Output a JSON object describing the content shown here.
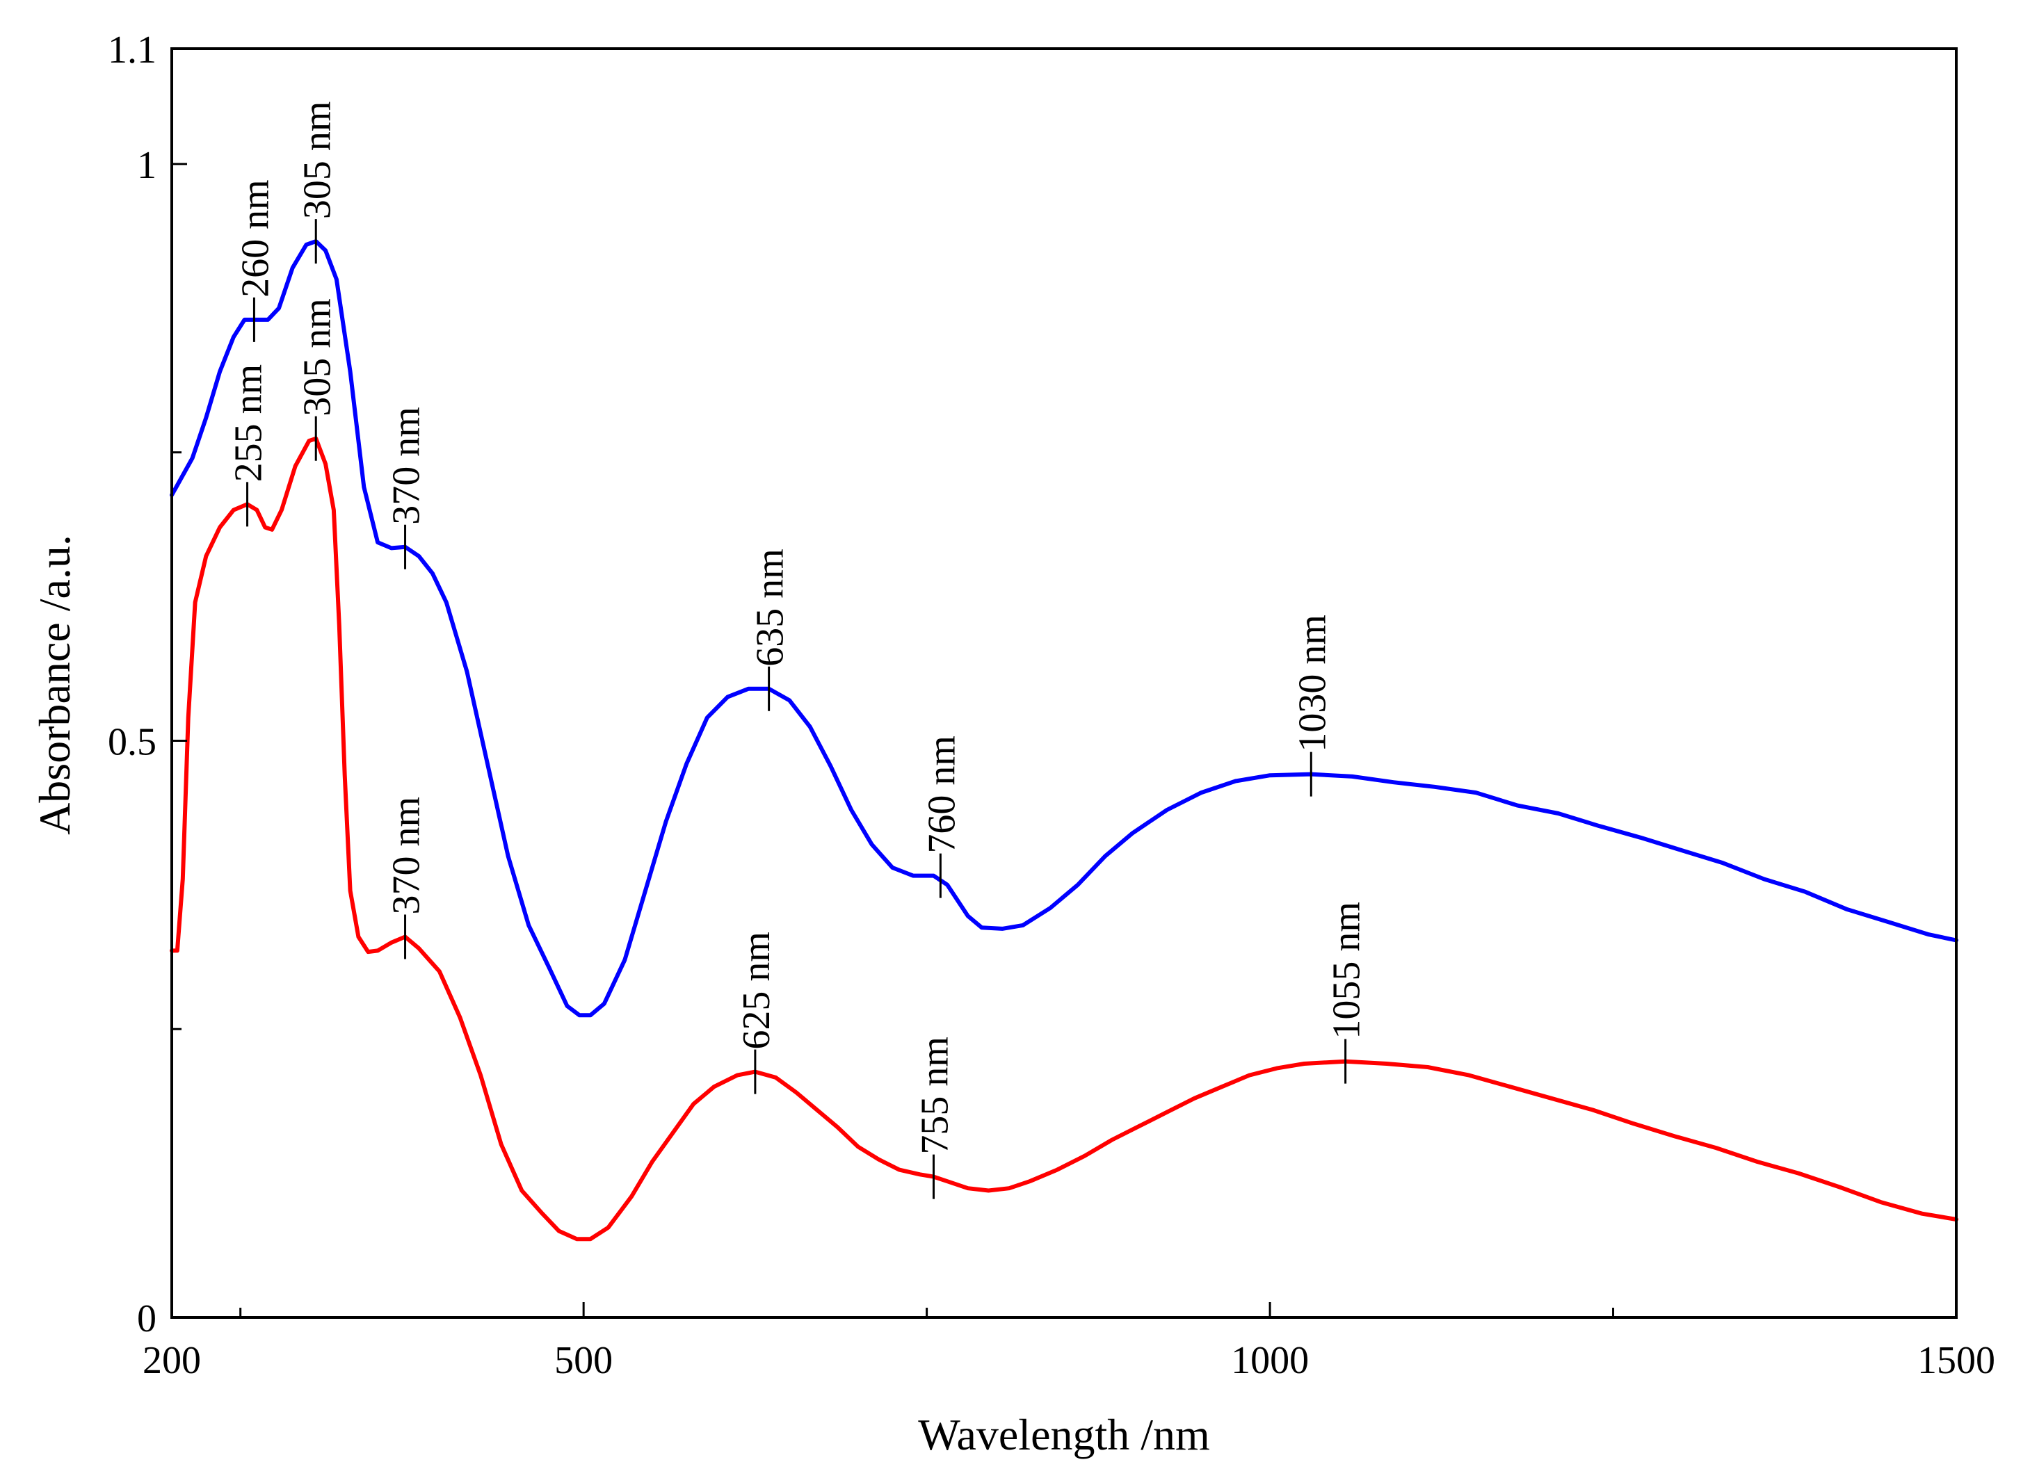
{
  "chart_data": {
    "type": "line",
    "title": "",
    "xlabel": "Wavelength /nm",
    "ylabel": "Absorbance /a.u.",
    "xlim": [
      200,
      1500
    ],
    "ylim": [
      0,
      1.1
    ],
    "x_ticks": [
      {
        "value": 200,
        "label": "200"
      },
      {
        "value": 500,
        "label": "500"
      },
      {
        "value": 1000,
        "label": "1000"
      },
      {
        "value": 1500,
        "label": "1500"
      }
    ],
    "x_minor_ticks": [
      250,
      750,
      1250
    ],
    "y_ticks": [
      {
        "value": 0,
        "label": "0"
      },
      {
        "value": 0.5,
        "label": "0.5"
      },
      {
        "value": 1,
        "label": "1"
      },
      {
        "value": 1.1,
        "label": "1.1"
      }
    ],
    "y_minor_ticks": [
      0.25,
      0.75
    ],
    "grid": false,
    "series": [
      {
        "name": "blue",
        "color": "#0000ff",
        "points": [
          [
            200,
            0.713
          ],
          [
            215,
            0.745
          ],
          [
            225,
            0.78
          ],
          [
            235,
            0.82
          ],
          [
            245,
            0.85
          ],
          [
            253,
            0.865
          ],
          [
            260,
            0.865
          ],
          [
            270,
            0.865
          ],
          [
            278,
            0.875
          ],
          [
            288,
            0.91
          ],
          [
            298,
            0.93
          ],
          [
            305,
            0.933
          ],
          [
            312,
            0.925
          ],
          [
            320,
            0.9
          ],
          [
            330,
            0.82
          ],
          [
            340,
            0.72
          ],
          [
            350,
            0.672
          ],
          [
            360,
            0.667
          ],
          [
            370,
            0.668
          ],
          [
            380,
            0.66
          ],
          [
            390,
            0.645
          ],
          [
            400,
            0.62
          ],
          [
            415,
            0.56
          ],
          [
            430,
            0.48
          ],
          [
            445,
            0.4
          ],
          [
            460,
            0.34
          ],
          [
            475,
            0.303
          ],
          [
            488,
            0.27
          ],
          [
            497,
            0.262
          ],
          [
            505,
            0.262
          ],
          [
            515,
            0.272
          ],
          [
            530,
            0.31
          ],
          [
            545,
            0.37
          ],
          [
            560,
            0.43
          ],
          [
            575,
            0.48
          ],
          [
            590,
            0.52
          ],
          [
            605,
            0.538
          ],
          [
            620,
            0.545
          ],
          [
            635,
            0.545
          ],
          [
            650,
            0.535
          ],
          [
            665,
            0.512
          ],
          [
            680,
            0.478
          ],
          [
            695,
            0.44
          ],
          [
            710,
            0.41
          ],
          [
            725,
            0.39
          ],
          [
            740,
            0.383
          ],
          [
            755,
            0.383
          ],
          [
            765,
            0.375
          ],
          [
            780,
            0.348
          ],
          [
            790,
            0.338
          ],
          [
            805,
            0.337
          ],
          [
            820,
            0.34
          ],
          [
            840,
            0.355
          ],
          [
            860,
            0.375
          ],
          [
            880,
            0.4
          ],
          [
            900,
            0.42
          ],
          [
            925,
            0.44
          ],
          [
            950,
            0.455
          ],
          [
            975,
            0.465
          ],
          [
            1000,
            0.47
          ],
          [
            1030,
            0.471
          ],
          [
            1060,
            0.469
          ],
          [
            1090,
            0.464
          ],
          [
            1120,
            0.46
          ],
          [
            1150,
            0.455
          ],
          [
            1180,
            0.444
          ],
          [
            1210,
            0.437
          ],
          [
            1240,
            0.426
          ],
          [
            1270,
            0.416
          ],
          [
            1300,
            0.405
          ],
          [
            1330,
            0.394
          ],
          [
            1360,
            0.38
          ],
          [
            1390,
            0.369
          ],
          [
            1420,
            0.354
          ],
          [
            1450,
            0.343
          ],
          [
            1480,
            0.332
          ],
          [
            1500,
            0.327
          ]
        ]
      },
      {
        "name": "red",
        "color": "#ff0000",
        "points": [
          [
            200,
            0.318
          ],
          [
            204,
            0.318
          ],
          [
            208,
            0.38
          ],
          [
            212,
            0.52
          ],
          [
            217,
            0.62
          ],
          [
            225,
            0.66
          ],
          [
            235,
            0.685
          ],
          [
            245,
            0.7
          ],
          [
            255,
            0.705
          ],
          [
            262,
            0.7
          ],
          [
            268,
            0.685
          ],
          [
            273,
            0.683
          ],
          [
            280,
            0.7
          ],
          [
            290,
            0.738
          ],
          [
            300,
            0.76
          ],
          [
            305,
            0.762
          ],
          [
            312,
            0.74
          ],
          [
            318,
            0.7
          ],
          [
            322,
            0.6
          ],
          [
            326,
            0.47
          ],
          [
            330,
            0.37
          ],
          [
            336,
            0.33
          ],
          [
            343,
            0.317
          ],
          [
            350,
            0.318
          ],
          [
            360,
            0.325
          ],
          [
            370,
            0.33
          ],
          [
            380,
            0.32
          ],
          [
            395,
            0.3
          ],
          [
            410,
            0.26
          ],
          [
            425,
            0.21
          ],
          [
            440,
            0.15
          ],
          [
            455,
            0.11
          ],
          [
            470,
            0.09
          ],
          [
            482,
            0.075
          ],
          [
            495,
            0.068
          ],
          [
            505,
            0.068
          ],
          [
            518,
            0.078
          ],
          [
            535,
            0.105
          ],
          [
            550,
            0.135
          ],
          [
            565,
            0.16
          ],
          [
            580,
            0.185
          ],
          [
            595,
            0.2
          ],
          [
            612,
            0.21
          ],
          [
            625,
            0.213
          ],
          [
            640,
            0.208
          ],
          [
            655,
            0.195
          ],
          [
            670,
            0.18
          ],
          [
            685,
            0.165
          ],
          [
            700,
            0.148
          ],
          [
            715,
            0.137
          ],
          [
            730,
            0.128
          ],
          [
            745,
            0.124
          ],
          [
            755,
            0.122
          ],
          [
            765,
            0.118
          ],
          [
            780,
            0.112
          ],
          [
            795,
            0.11
          ],
          [
            810,
            0.112
          ],
          [
            825,
            0.118
          ],
          [
            845,
            0.128
          ],
          [
            865,
            0.14
          ],
          [
            885,
            0.154
          ],
          [
            905,
            0.166
          ],
          [
            925,
            0.178
          ],
          [
            945,
            0.19
          ],
          [
            965,
            0.2
          ],
          [
            985,
            0.21
          ],
          [
            1005,
            0.216
          ],
          [
            1025,
            0.22
          ],
          [
            1055,
            0.222
          ],
          [
            1085,
            0.22
          ],
          [
            1115,
            0.217
          ],
          [
            1145,
            0.21
          ],
          [
            1175,
            0.2
          ],
          [
            1205,
            0.19
          ],
          [
            1235,
            0.18
          ],
          [
            1265,
            0.168
          ],
          [
            1295,
            0.157
          ],
          [
            1325,
            0.147
          ],
          [
            1355,
            0.135
          ],
          [
            1385,
            0.125
          ],
          [
            1415,
            0.113
          ],
          [
            1445,
            0.1
          ],
          [
            1475,
            0.09
          ],
          [
            1500,
            0.085
          ]
        ]
      }
    ],
    "annotations": [
      {
        "series": "blue",
        "x": 260,
        "y": 0.865,
        "text": "260 nm"
      },
      {
        "series": "blue",
        "x": 305,
        "y": 0.933,
        "text": "305 nm"
      },
      {
        "series": "blue",
        "x": 370,
        "y": 0.668,
        "text": "370 nm"
      },
      {
        "series": "blue",
        "x": 635,
        "y": 0.545,
        "text": "635 nm"
      },
      {
        "series": "blue",
        "x": 760,
        "y": 0.383,
        "text": "760 nm"
      },
      {
        "series": "blue",
        "x": 1030,
        "y": 0.471,
        "text": "1030 nm"
      },
      {
        "series": "red",
        "x": 255,
        "y": 0.705,
        "text": "255 nm"
      },
      {
        "series": "red",
        "x": 305,
        "y": 0.762,
        "text": "305 nm"
      },
      {
        "series": "red",
        "x": 370,
        "y": 0.33,
        "text": "370 nm"
      },
      {
        "series": "red",
        "x": 625,
        "y": 0.213,
        "text": "625 nm"
      },
      {
        "series": "red",
        "x": 755,
        "y": 0.122,
        "text": "755 nm"
      },
      {
        "series": "red",
        "x": 1055,
        "y": 0.222,
        "text": "1055 nm"
      }
    ]
  }
}
